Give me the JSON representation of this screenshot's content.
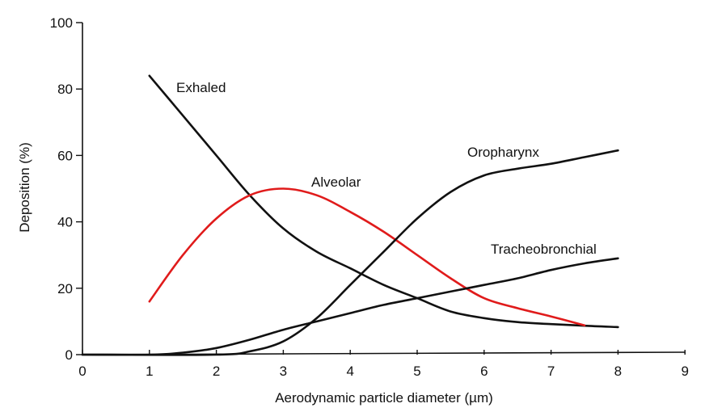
{
  "chart_data": {
    "type": "line",
    "title": "",
    "xlabel": "Aerodynamic particle diameter (µm)",
    "ylabel": "Deposition (%)",
    "xlim": [
      0,
      9
    ],
    "ylim": [
      0,
      100
    ],
    "xticks": [
      "0",
      "1",
      "2",
      "3",
      "4",
      "5",
      "6",
      "7",
      "8",
      "9"
    ],
    "yticks": [
      "0",
      "20",
      "40",
      "60",
      "80",
      "100"
    ],
    "grid": false,
    "legend": "none",
    "series": [
      {
        "name": "Exhaled",
        "color": "#111111",
        "x": [
          1,
          1.5,
          2,
          2.5,
          3,
          3.5,
          4,
          4.5,
          5,
          5.5,
          6,
          6.5,
          7,
          7.5,
          8
        ],
        "y": [
          84,
          72,
          60,
          48,
          38,
          31,
          26,
          21,
          17,
          13,
          11,
          9.8,
          9.2,
          8.7,
          8.3
        ]
      },
      {
        "name": "Alveolar",
        "color": "#e01b1b",
        "x": [
          1,
          1.5,
          2,
          2.5,
          3,
          3.5,
          4,
          4.5,
          5,
          5.5,
          6,
          6.5,
          7,
          7.5
        ],
        "y": [
          16,
          30,
          41,
          48,
          50,
          48,
          43,
          37,
          30,
          23,
          17,
          14,
          11.5,
          8.8
        ]
      },
      {
        "name": "Oropharynx",
        "color": "#111111",
        "x": [
          0,
          2,
          2.5,
          3,
          3.5,
          4,
          4.5,
          5,
          5.5,
          6,
          6.5,
          7,
          7.5,
          8
        ],
        "y": [
          0,
          0,
          1,
          4,
          11,
          21,
          31,
          41,
          49,
          54,
          56,
          57.5,
          59.5,
          61.5
        ]
      },
      {
        "name": "Tracheobronchial",
        "color": "#111111",
        "x": [
          0,
          1,
          1.5,
          2,
          2.5,
          3,
          3.5,
          4,
          4.5,
          5,
          5.5,
          6,
          6.5,
          7,
          7.5,
          8
        ],
        "y": [
          0,
          0,
          0.6,
          2,
          4.5,
          7.5,
          10,
          12.5,
          15,
          17,
          19,
          21,
          23,
          25.5,
          27.5,
          29
        ]
      }
    ]
  }
}
